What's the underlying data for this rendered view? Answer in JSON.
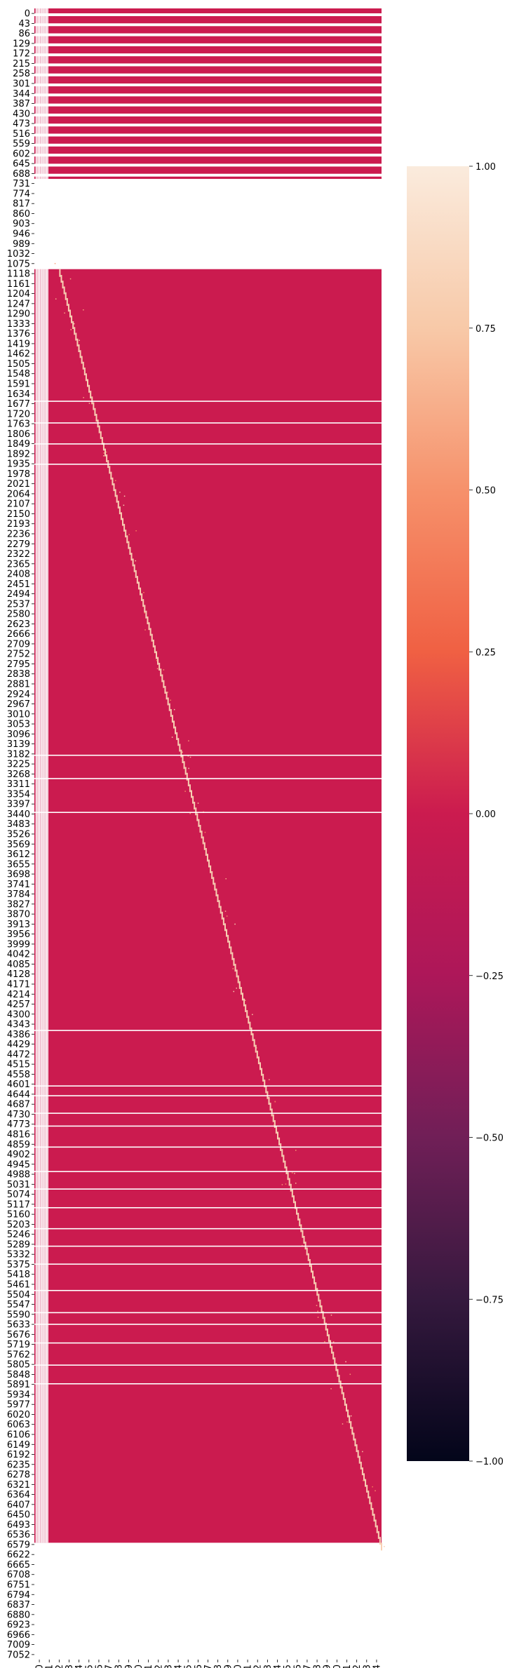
{
  "chart_data": {
    "type": "heatmap",
    "title": "",
    "xlabel": "",
    "ylabel": "",
    "colormap": "rocket",
    "colorbar": {
      "range": [
        -1.0,
        1.0
      ],
      "ticks": [
        "1.00",
        "0.75",
        "0.50",
        "0.25",
        "0.00",
        "−0.25",
        "−0.50",
        "−0.75",
        "−1.00"
      ],
      "tick_values": [
        1.0,
        0.75,
        0.5,
        0.25,
        0.0,
        -0.25,
        -0.5,
        -0.75,
        -1.0
      ]
    },
    "background_value": 0.0,
    "n_rows": 7080,
    "n_cols": 1768,
    "y_tick_labels": [
      "0",
      "43",
      "86",
      "129",
      "172",
      "215",
      "258",
      "301",
      "344",
      "387",
      "430",
      "473",
      "516",
      "559",
      "602",
      "645",
      "688",
      "731",
      "774",
      "817",
      "860",
      "903",
      "946",
      "989",
      "1032",
      "1075",
      "1118",
      "1161",
      "1204",
      "1247",
      "1290",
      "1333",
      "1376",
      "1419",
      "1462",
      "1505",
      "1548",
      "1591",
      "1634",
      "1677",
      "1720",
      "1763",
      "1806",
      "1849",
      "1892",
      "1935",
      "1978",
      "2021",
      "2064",
      "2107",
      "2150",
      "2193",
      "2236",
      "2279",
      "2322",
      "2365",
      "2408",
      "2451",
      "2494",
      "2537",
      "2580",
      "2623",
      "2666",
      "2709",
      "2752",
      "2795",
      "2838",
      "2881",
      "2924",
      "2967",
      "3010",
      "3053",
      "3096",
      "3139",
      "3182",
      "3225",
      "3268",
      "3311",
      "3354",
      "3397",
      "3440",
      "3483",
      "3526",
      "3569",
      "3612",
      "3655",
      "3698",
      "3741",
      "3784",
      "3827",
      "3870",
      "3913",
      "3956",
      "3999",
      "4042",
      "4085",
      "4128",
      "4171",
      "4214",
      "4257",
      "4300",
      "4343",
      "4386",
      "4429",
      "4472",
      "4515",
      "4558",
      "4601",
      "4644",
      "4687",
      "4730",
      "4773",
      "4816",
      "4859",
      "4902",
      "4945",
      "4988",
      "5031",
      "5074",
      "5117",
      "5160",
      "5203",
      "5246",
      "5289",
      "5332",
      "5375",
      "5418",
      "5461",
      "5504",
      "5547",
      "5590",
      "5633",
      "5676",
      "5719",
      "5762",
      "5805",
      "5848",
      "5891",
      "5934",
      "5977",
      "6020",
      "6063",
      "6106",
      "6149",
      "6192",
      "6235",
      "6278",
      "6321",
      "6364",
      "6407",
      "6450",
      "6493",
      "6536",
      "6579",
      "6622",
      "6665",
      "6708",
      "6751",
      "6794",
      "6837",
      "6880",
      "6923",
      "6966",
      "7009",
      "7052"
    ],
    "x_tick_labels": [
      "0",
      "51",
      "102",
      "153",
      "204",
      "255",
      "306",
      "357",
      "408",
      "459",
      "510",
      "561",
      "612",
      "663",
      "714",
      "765",
      "816",
      "867",
      "918",
      "969",
      "1020",
      "1071",
      "1122",
      "1173",
      "1224",
      "1275",
      "1326",
      "1377",
      "1428",
      "1479",
      "1530",
      "1581",
      "1632",
      "1683",
      "1734"
    ],
    "filled_row_ranges": [
      [
        0,
        731
      ],
      [
        1118,
        6579
      ]
    ],
    "blank_column_lines": [
      6,
      12,
      18,
      24,
      30,
      36,
      42,
      48,
      54,
      60,
      66
    ],
    "blank_row_lines": [
      1682,
      1775,
      1865,
      1952,
      3200,
      3300,
      3445,
      4380,
      4618,
      4660,
      4735,
      4790,
      4880,
      4985,
      5060,
      5140,
      5230,
      5305,
      5382,
      5495,
      5590,
      5640,
      5720,
      5815,
      5895
    ],
    "diagonal_band": {
      "row_start": 1118,
      "col_start": 130,
      "row_end": 6579,
      "col_end": 1768,
      "peak_value": 1.0
    }
  }
}
